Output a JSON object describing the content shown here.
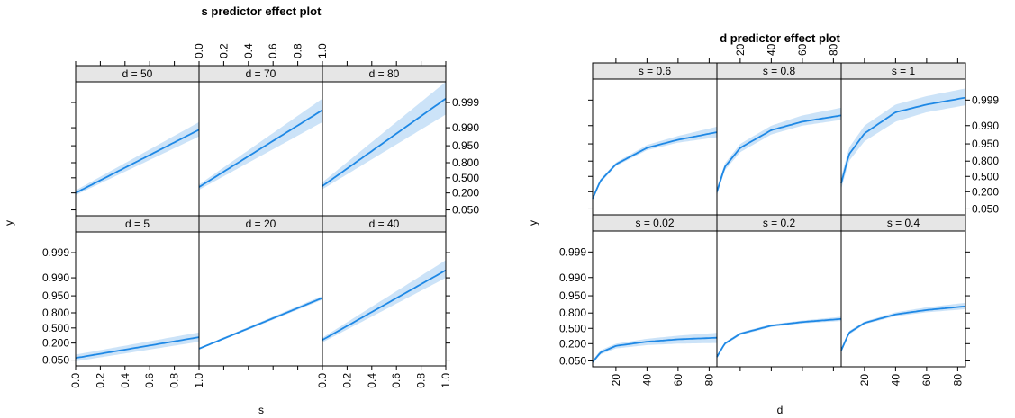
{
  "colors": {
    "line": "#1e88e5",
    "band": "#cce3f8",
    "strip": "#e6e6e6",
    "axis": "#000000"
  },
  "chart_data": [
    {
      "type": "line",
      "title": "s predictor effect plot",
      "xlabel": "s",
      "ylabel": "y",
      "x_ticks": [
        "0.0",
        "0.2",
        "0.4",
        "0.6",
        "0.8",
        "1.0"
      ],
      "y_ticks": [
        "0.050",
        "0.200",
        "0.500",
        "0.800",
        "0.950",
        "0.990",
        "0.999"
      ],
      "xlim": [
        0,
        1
      ],
      "y_scale": "logit",
      "panels": [
        {
          "strip": "d = 50",
          "row": 0,
          "col": 0,
          "x": [
            0,
            1
          ],
          "y": [
            0.2,
            0.988
          ],
          "lower": [
            0.17,
            0.978
          ],
          "upper": [
            0.24,
            0.994
          ]
        },
        {
          "strip": "d = 70",
          "row": 0,
          "col": 1,
          "x": [
            0,
            1
          ],
          "y": [
            0.3,
            0.998
          ],
          "lower": [
            0.25,
            0.994
          ],
          "upper": [
            0.35,
            0.9993
          ]
        },
        {
          "strip": "d = 80",
          "row": 0,
          "col": 2,
          "x": [
            0,
            1
          ],
          "y": [
            0.32,
            0.9993
          ],
          "lower": [
            0.26,
            0.997
          ],
          "upper": [
            0.4,
            0.99985
          ]
        },
        {
          "strip": "d = 5",
          "row": 1,
          "col": 0,
          "x": [
            0,
            1
          ],
          "y": [
            0.06,
            0.3
          ],
          "lower": [
            0.045,
            0.22
          ],
          "upper": [
            0.08,
            0.4
          ]
        },
        {
          "strip": "d = 20",
          "row": 1,
          "col": 1,
          "x": [
            0,
            1
          ],
          "y": [
            0.13,
            0.94
          ],
          "lower": [
            0.12,
            0.93
          ],
          "upper": [
            0.14,
            0.95
          ]
        },
        {
          "strip": "d = 40",
          "row": 1,
          "col": 2,
          "x": [
            0,
            1
          ],
          "y": [
            0.25,
            0.995
          ],
          "lower": [
            0.21,
            0.99
          ],
          "upper": [
            0.29,
            0.998
          ]
        }
      ]
    },
    {
      "type": "line",
      "title": "d predictor effect plot",
      "xlabel": "d",
      "ylabel": "y",
      "x_ticks": [
        "20",
        "40",
        "60",
        "80"
      ],
      "y_ticks": [
        "0.050",
        "0.200",
        "0.500",
        "0.800",
        "0.950",
        "0.990",
        "0.999"
      ],
      "xlim": [
        5,
        85
      ],
      "y_scale": "logit",
      "panels": [
        {
          "strip": "s = 0.6",
          "row": 0,
          "col": 0,
          "x": [
            5,
            10,
            20,
            40,
            60,
            85
          ],
          "y": [
            0.12,
            0.4,
            0.75,
            0.93,
            0.965,
            0.982
          ],
          "lower": [
            0.1,
            0.36,
            0.72,
            0.915,
            0.955,
            0.972
          ],
          "upper": [
            0.14,
            0.44,
            0.78,
            0.945,
            0.975,
            0.989
          ]
        },
        {
          "strip": "s = 0.8",
          "row": 0,
          "col": 1,
          "x": [
            5,
            10,
            20,
            40,
            60,
            85
          ],
          "y": [
            0.2,
            0.7,
            0.93,
            0.985,
            0.993,
            0.996
          ],
          "lower": [
            0.15,
            0.63,
            0.9,
            0.978,
            0.99,
            0.994
          ],
          "upper": [
            0.26,
            0.76,
            0.95,
            0.99,
            0.996,
            0.998
          ]
        },
        {
          "strip": "s = 1",
          "row": 0,
          "col": 2,
          "x": [
            5,
            10,
            20,
            40,
            60,
            85
          ],
          "y": [
            0.35,
            0.88,
            0.98,
            0.997,
            0.9985,
            0.9992
          ],
          "lower": [
            0.24,
            0.8,
            0.96,
            0.993,
            0.997,
            0.9984
          ],
          "upper": [
            0.48,
            0.93,
            0.99,
            0.9985,
            0.9993,
            0.99965
          ]
        },
        {
          "strip": "s = 0.02",
          "row": 1,
          "col": 0,
          "x": [
            5,
            10,
            20,
            40,
            60,
            85
          ],
          "y": [
            0.045,
            0.1,
            0.17,
            0.23,
            0.27,
            0.3
          ],
          "lower": [
            0.04,
            0.085,
            0.14,
            0.18,
            0.2,
            0.21
          ],
          "upper": [
            0.052,
            0.12,
            0.2,
            0.28,
            0.34,
            0.4
          ]
        },
        {
          "strip": "s = 0.2",
          "row": 1,
          "col": 1,
          "x": [
            5,
            10,
            20,
            40,
            60,
            85
          ],
          "y": [
            0.07,
            0.2,
            0.38,
            0.56,
            0.64,
            0.7
          ],
          "lower": [
            0.06,
            0.18,
            0.35,
            0.53,
            0.61,
            0.66
          ],
          "upper": [
            0.08,
            0.22,
            0.41,
            0.59,
            0.67,
            0.74
          ]
        },
        {
          "strip": "s = 0.4",
          "row": 1,
          "col": 2,
          "x": [
            5,
            10,
            20,
            40,
            60,
            85
          ],
          "y": [
            0.12,
            0.4,
            0.62,
            0.78,
            0.84,
            0.88
          ],
          "lower": [
            0.1,
            0.36,
            0.59,
            0.75,
            0.81,
            0.85
          ],
          "upper": [
            0.14,
            0.44,
            0.65,
            0.81,
            0.87,
            0.91
          ]
        }
      ]
    }
  ]
}
